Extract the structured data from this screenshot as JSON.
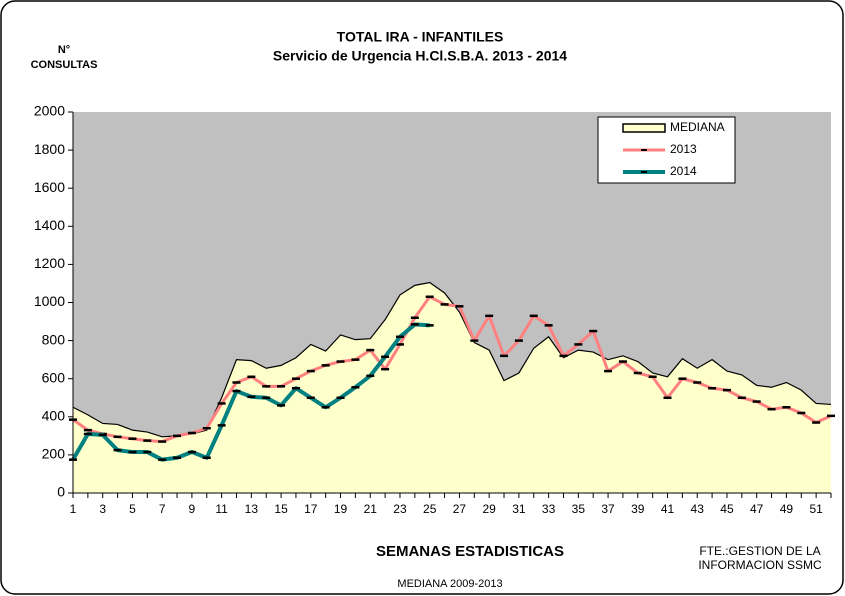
{
  "chart_data": {
    "type": "line",
    "title": "TOTAL IRA -  INFANTILES",
    "subtitle": "Servicio de Urgencia H.Cl.S.B.A. 2013 - 2014",
    "ylabel": [
      "N°",
      "CONSULTAS"
    ],
    "xlabel": "SEMANAS ESTADISTICAS",
    "source": [
      "FTE.:GESTION DE LA",
      "INFORMACION  SSMC"
    ],
    "footnote": "MEDIANA 2009-2013",
    "x": [
      1,
      2,
      3,
      4,
      5,
      6,
      7,
      8,
      9,
      10,
      11,
      12,
      13,
      14,
      15,
      16,
      17,
      18,
      19,
      20,
      21,
      22,
      23,
      24,
      25,
      26,
      27,
      28,
      29,
      30,
      31,
      32,
      33,
      34,
      35,
      36,
      37,
      38,
      39,
      40,
      41,
      42,
      43,
      44,
      45,
      46,
      47,
      48,
      49,
      50,
      51,
      52
    ],
    "xlim": [
      1,
      52
    ],
    "xticks": [
      1,
      3,
      5,
      7,
      9,
      11,
      13,
      15,
      17,
      19,
      21,
      23,
      25,
      27,
      29,
      31,
      33,
      35,
      37,
      39,
      41,
      43,
      45,
      47,
      49,
      51
    ],
    "ylim": [
      0,
      2000
    ],
    "yticks": [
      0,
      200,
      400,
      600,
      800,
      1000,
      1200,
      1400,
      1600,
      1800,
      2000
    ],
    "background": "#c0c0c0",
    "legend": "upper-right",
    "series": [
      {
        "name": "MEDIANA",
        "kind": "area",
        "color": "#ffffcc",
        "values": [
          450,
          410,
          365,
          360,
          330,
          320,
          295,
          300,
          310,
          330,
          500,
          700,
          695,
          655,
          670,
          710,
          780,
          745,
          830,
          805,
          810,
          910,
          1040,
          1090,
          1105,
          1050,
          950,
          790,
          750,
          590,
          630,
          760,
          820,
          710,
          750,
          740,
          700,
          720,
          690,
          630,
          610,
          705,
          655,
          700,
          640,
          620,
          565,
          555,
          580,
          540,
          470,
          465
        ]
      },
      {
        "name": "2013",
        "kind": "line",
        "color": "#ff8080",
        "values": [
          385,
          330,
          310,
          295,
          285,
          275,
          270,
          300,
          315,
          340,
          470,
          580,
          610,
          560,
          560,
          600,
          640,
          670,
          690,
          700,
          750,
          650,
          780,
          920,
          1030,
          990,
          980,
          800,
          930,
          720,
          800,
          930,
          880,
          720,
          780,
          850,
          640,
          690,
          630,
          610,
          500,
          600,
          580,
          550,
          540,
          500,
          480,
          440,
          450,
          420,
          370,
          405
        ]
      },
      {
        "name": "2014",
        "kind": "line",
        "color": "#008080",
        "values": [
          175,
          310,
          305,
          225,
          215,
          215,
          175,
          185,
          215,
          185,
          355,
          535,
          505,
          500,
          460,
          550,
          500,
          450,
          500,
          555,
          615,
          715,
          820,
          885,
          880,
          null,
          null,
          null,
          null,
          null,
          null,
          null,
          null,
          null,
          null,
          null,
          null,
          null,
          null,
          null,
          null,
          null,
          null,
          null,
          null,
          null,
          null,
          null,
          null,
          null,
          null,
          null
        ]
      }
    ]
  }
}
